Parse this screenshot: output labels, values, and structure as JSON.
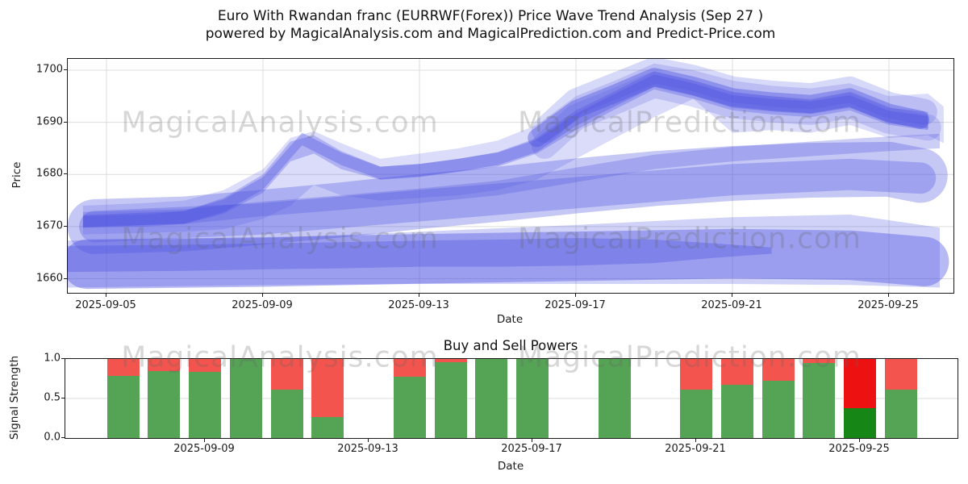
{
  "title": {
    "line1": "Euro With Rwandan franc (EURRWF(Forex)) Price Wave Trend Analysis (Sep 27 )",
    "line2": "powered by MagicalAnalysis.com and MagicalPrediction.com and Predict-Price.com"
  },
  "watermarks": {
    "left": "MagicalAnalysis.com",
    "right": "MagicalPrediction.com"
  },
  "colors": {
    "band": "#4a50e0",
    "buy": "#55a455",
    "sell": "#f4544e",
    "buy_highlight": "#168616",
    "sell_highlight": "#ed1111",
    "grid": "#dcdcdc",
    "spine": "#1a1a1a"
  },
  "chart_data": [
    {
      "type": "area",
      "name": "price-wave-trend",
      "xlabel": "Date",
      "ylabel": "Price",
      "x_start_date": "2025-09-05",
      "xticks": [
        {
          "label": "2025-09-05",
          "day": 0
        },
        {
          "label": "2025-09-09",
          "day": 4
        },
        {
          "label": "2025-09-13",
          "day": 8
        },
        {
          "label": "2025-09-17",
          "day": 12
        },
        {
          "label": "2025-09-21",
          "day": 16
        },
        {
          "label": "2025-09-25",
          "day": 20
        }
      ],
      "yticks": [
        1660,
        1670,
        1680,
        1690,
        1700
      ],
      "ylim": [
        1657.2,
        1702.2
      ],
      "xlim_days": [
        -1,
        21.7
      ],
      "grid": true,
      "trend_center": [
        1671,
        1671.5,
        1672,
        1674,
        1678,
        1686.5,
        1683,
        1680.3,
        1680.8,
        1681.8,
        1683,
        1685.5,
        1690.5,
        1694.3,
        1698,
        1696.3,
        1694,
        1693.3,
        1692.8,
        1694,
        1691,
        1690
      ],
      "bands": [
        {
          "kind": "fill",
          "name": "lower-light-fan",
          "opacity": 0.26,
          "points": [
            [
              -1,
              1658.3,
              1667.3
            ],
            [
              4,
              1658.8,
              1667.8
            ],
            [
              8,
              1659,
              1669
            ],
            [
              12,
              1659,
              1670.3
            ],
            [
              16,
              1659,
              1671.8
            ],
            [
              19,
              1658.8,
              1672.3
            ],
            [
              21.3,
              1658.3,
              1669.8
            ]
          ]
        },
        {
          "kind": "fill",
          "name": "lower-dark-band",
          "opacity": 0.35,
          "points": [
            [
              -1,
              1661.3,
              1666.3
            ],
            [
              2,
              1661.5,
              1666.5
            ],
            [
              4,
              1661.8,
              1666.8
            ],
            [
              6,
              1662,
              1667
            ],
            [
              8,
              1662.3,
              1667.3
            ],
            [
              10,
              1662.3,
              1667.5
            ],
            [
              12,
              1662.5,
              1667.8
            ],
            [
              14,
              1663,
              1667.5
            ],
            [
              15.5,
              1664,
              1666.8
            ],
            [
              17,
              1664.8,
              1666
            ]
          ]
        },
        {
          "kind": "pill",
          "name": "lower-pill",
          "opacity": 0.4,
          "width": 9.5,
          "points": [
            [
              -0.5,
              1662.8
            ],
            [
              4,
              1663.2
            ],
            [
              8,
              1663.8
            ],
            [
              12,
              1664.3
            ],
            [
              16,
              1664.8
            ],
            [
              19,
              1664.5
            ],
            [
              20.9,
              1663.3
            ]
          ]
        },
        {
          "kind": "fill",
          "name": "outer-fan",
          "opacity": 0.2,
          "points": [
            [
              -0.6,
              1668.5,
              1674
            ],
            [
              1,
              1668.8,
              1674.5
            ],
            [
              2,
              1669,
              1675
            ],
            [
              3,
              1669.5,
              1677
            ],
            [
              4,
              1671.5,
              1681
            ],
            [
              4.7,
              1674,
              1687
            ],
            [
              5.3,
              1678,
              1688.3
            ],
            [
              6,
              1676,
              1686
            ],
            [
              7,
              1675,
              1683
            ],
            [
              8,
              1675.5,
              1684
            ],
            [
              9,
              1676,
              1685
            ],
            [
              10,
              1677,
              1686.5
            ],
            [
              11,
              1679,
              1689.5
            ],
            [
              12,
              1683,
              1695
            ],
            [
              13,
              1687,
              1698
            ],
            [
              14,
              1691,
              1701.3
            ],
            [
              15,
              1694.5,
              1700
            ],
            [
              16,
              1688,
              1698
            ],
            [
              17,
              1688.5,
              1697
            ],
            [
              18,
              1688,
              1696.5
            ],
            [
              19,
              1689.5,
              1697.5
            ],
            [
              20,
              1687,
              1695
            ],
            [
              21,
              1687.5,
              1695.5
            ],
            [
              21.4,
              1686,
              1693
            ]
          ]
        },
        {
          "kind": "fill",
          "name": "mid-secondary-band",
          "opacity": 0.28,
          "points": [
            [
              -0.6,
              1670,
              1672.8
            ],
            [
              2,
              1670.5,
              1673.3
            ],
            [
              4,
              1672,
              1674.8
            ],
            [
              6,
              1673.2,
              1676
            ],
            [
              8,
              1674.5,
              1677.3
            ],
            [
              10,
              1676,
              1678.8
            ],
            [
              12,
              1678.5,
              1681.3
            ],
            [
              14,
              1681,
              1683.8
            ],
            [
              16,
              1682.5,
              1685.3
            ],
            [
              18,
              1683.5,
              1686.3
            ],
            [
              20,
              1684.5,
              1687.3
            ],
            [
              21.3,
              1685,
              1687.8
            ]
          ]
        },
        {
          "kind": "pill",
          "name": "mid-pill-light",
          "opacity": 0.32,
          "width": 10.5,
          "points": [
            [
              -0.3,
              1670
            ],
            [
              2,
              1670.5
            ],
            [
              4,
              1671.8
            ],
            [
              6,
              1673.2
            ],
            [
              8,
              1674.8
            ],
            [
              10,
              1676.2
            ],
            [
              12,
              1677.8
            ],
            [
              14,
              1679.2
            ],
            [
              16,
              1680.2
            ],
            [
              18,
              1680.8
            ],
            [
              20,
              1681
            ],
            [
              20.8,
              1679.8
            ]
          ]
        },
        {
          "kind": "pill",
          "name": "mid-pill-core",
          "opacity": 0.3,
          "width": 6,
          "points": [
            [
              -0.3,
              1670
            ],
            [
              4,
              1671.5
            ],
            [
              8,
              1674
            ],
            [
              12,
              1676.5
            ],
            [
              16,
              1679
            ],
            [
              19,
              1680
            ],
            [
              20.8,
              1679.3
            ]
          ]
        },
        {
          "kind": "fill",
          "name": "mountain-band",
          "opacity": 0.3,
          "points": [
            [
              -0.6,
              1669.8,
              1672
            ],
            [
              1,
              1670,
              1672.3
            ],
            [
              2,
              1670.5,
              1673
            ],
            [
              3,
              1672.5,
              1675.5
            ],
            [
              4,
              1676.5,
              1680
            ],
            [
              4.7,
              1682.5,
              1686.3
            ],
            [
              5.3,
              1684,
              1687.5
            ],
            [
              6,
              1681,
              1684.5
            ],
            [
              7,
              1679,
              1681.5
            ],
            [
              8,
              1679.5,
              1682
            ],
            [
              9,
              1680.5,
              1683
            ],
            [
              10,
              1681.5,
              1684.3
            ],
            [
              11,
              1684,
              1687
            ],
            [
              12,
              1688.5,
              1692.3
            ],
            [
              13,
              1692.5,
              1696
            ],
            [
              14,
              1696.3,
              1699.8
            ],
            [
              15,
              1694.5,
              1698
            ],
            [
              16,
              1692.3,
              1695.8
            ],
            [
              17,
              1691.5,
              1695
            ],
            [
              18,
              1691,
              1694.3
            ],
            [
              19,
              1692.3,
              1695.8
            ],
            [
              20,
              1689.5,
              1692.8
            ],
            [
              21,
              1688.5,
              1692
            ]
          ]
        },
        {
          "kind": "fill",
          "name": "mountain-core",
          "opacity": 0.35,
          "points": [
            [
              -0.6,
              1669.8,
              1672.2
            ],
            [
              2,
              1670.6,
              1673
            ],
            [
              3,
              1672.8,
              1675.2
            ],
            [
              4,
              1677.1,
              1679.5
            ],
            [
              5,
              1685.6,
              1688
            ],
            [
              6,
              1681.8,
              1684.2
            ],
            [
              7,
              1679.1,
              1681.5
            ],
            [
              8,
              1679.6,
              1682
            ],
            [
              9,
              1680.6,
              1683
            ],
            [
              10,
              1681.8,
              1684.2
            ],
            [
              11,
              1684.3,
              1686.7
            ],
            [
              12,
              1689.3,
              1691.7
            ],
            [
              13,
              1693.1,
              1695.5
            ],
            [
              14,
              1696.8,
              1699.2
            ],
            [
              15,
              1695.1,
              1697.5
            ],
            [
              16,
              1692.8,
              1695.2
            ],
            [
              17,
              1692.1,
              1694.5
            ],
            [
              18,
              1691.6,
              1694
            ],
            [
              19,
              1692.8,
              1695.2
            ],
            [
              20,
              1689.8,
              1692.2
            ],
            [
              21,
              1688.8,
              1691.2
            ]
          ]
        },
        {
          "kind": "pill",
          "name": "upper-cluster-low",
          "opacity": 0.2,
          "width": 5,
          "points": [
            [
              11.2,
              1685.5
            ],
            [
              12,
              1691
            ],
            [
              13,
              1694
            ],
            [
              14,
              1697.2
            ],
            [
              15,
              1695.5
            ],
            [
              16,
              1693.3
            ],
            [
              17,
              1692.5
            ],
            [
              18,
              1692
            ],
            [
              19,
              1693.3
            ],
            [
              20,
              1690.3
            ],
            [
              21,
              1689
            ]
          ]
        },
        {
          "kind": "pill",
          "name": "upper-cluster-high",
          "opacity": 0.22,
          "width": 5,
          "points": [
            [
              11.2,
              1688.5
            ],
            [
              12,
              1694
            ],
            [
              13,
              1697
            ],
            [
              14,
              1700
            ],
            [
              15,
              1698.5
            ],
            [
              16,
              1696.3
            ],
            [
              17,
              1695.5
            ],
            [
              18,
              1695
            ],
            [
              19,
              1696.3
            ],
            [
              20,
              1693.3
            ],
            [
              20.9,
              1692
            ]
          ]
        },
        {
          "kind": "pill",
          "name": "upper-cluster-core",
          "opacity": 0.4,
          "width": 3.5,
          "points": [
            [
              11,
              1687
            ],
            [
              12,
              1692.5
            ],
            [
              13,
              1695.5
            ],
            [
              14,
              1698.7
            ],
            [
              15,
              1697
            ],
            [
              16,
              1694.8
            ],
            [
              17,
              1694
            ],
            [
              18,
              1693.5
            ],
            [
              19,
              1694.8
            ],
            [
              20,
              1691.8
            ],
            [
              20.8,
              1690.5
            ]
          ]
        }
      ]
    },
    {
      "type": "bar",
      "name": "buy-sell-powers",
      "title": "Buy and Sell Powers",
      "xlabel": "Date",
      "ylabel": "Signal Strength",
      "yticks": [
        0.0,
        0.5,
        1.0
      ],
      "ylim": [
        0,
        1
      ],
      "grid": "horizontal",
      "xticks": [
        {
          "label": "2025-09-09",
          "day": 4
        },
        {
          "label": "2025-09-13",
          "day": 8
        },
        {
          "label": "2025-09-17",
          "day": 12
        },
        {
          "label": "2025-09-21",
          "day": 16
        },
        {
          "label": "2025-09-25",
          "day": 20
        }
      ],
      "bars": [
        {
          "date": "2025-09-07",
          "day": 2,
          "buy": 0.79,
          "sell": 0.21,
          "highlight": false
        },
        {
          "date": "2025-09-08",
          "day": 3,
          "buy": 0.85,
          "sell": 0.15,
          "highlight": false
        },
        {
          "date": "2025-09-09",
          "day": 4,
          "buy": 0.84,
          "sell": 0.16,
          "highlight": false
        },
        {
          "date": "2025-09-10",
          "day": 5,
          "buy": 1.0,
          "sell": 0.0,
          "highlight": false
        },
        {
          "date": "2025-09-11",
          "day": 6,
          "buy": 0.61,
          "sell": 0.39,
          "highlight": false
        },
        {
          "date": "2025-09-12",
          "day": 7,
          "buy": 0.27,
          "sell": 0.73,
          "highlight": false
        },
        {
          "date": "2025-09-14",
          "day": 9,
          "buy": 0.78,
          "sell": 0.22,
          "highlight": false
        },
        {
          "date": "2025-09-15",
          "day": 10,
          "buy": 0.96,
          "sell": 0.04,
          "highlight": false
        },
        {
          "date": "2025-09-16",
          "day": 11,
          "buy": 1.0,
          "sell": 0.0,
          "highlight": false
        },
        {
          "date": "2025-09-17",
          "day": 12,
          "buy": 1.0,
          "sell": 0.0,
          "highlight": false
        },
        {
          "date": "2025-09-19",
          "day": 14,
          "buy": 1.0,
          "sell": 0.0,
          "highlight": false
        },
        {
          "date": "2025-09-21",
          "day": 16,
          "buy": 0.61,
          "sell": 0.39,
          "highlight": false
        },
        {
          "date": "2025-09-22",
          "day": 17,
          "buy": 0.67,
          "sell": 0.33,
          "highlight": false
        },
        {
          "date": "2025-09-23",
          "day": 18,
          "buy": 0.72,
          "sell": 0.28,
          "highlight": false
        },
        {
          "date": "2025-09-24",
          "day": 19,
          "buy": 0.95,
          "sell": 0.05,
          "highlight": false
        },
        {
          "date": "2025-09-25",
          "day": 20,
          "buy": 0.38,
          "sell": 0.62,
          "highlight": true
        },
        {
          "date": "2025-09-26",
          "day": 21,
          "buy": 0.61,
          "sell": 0.39,
          "highlight": false
        }
      ]
    }
  ]
}
